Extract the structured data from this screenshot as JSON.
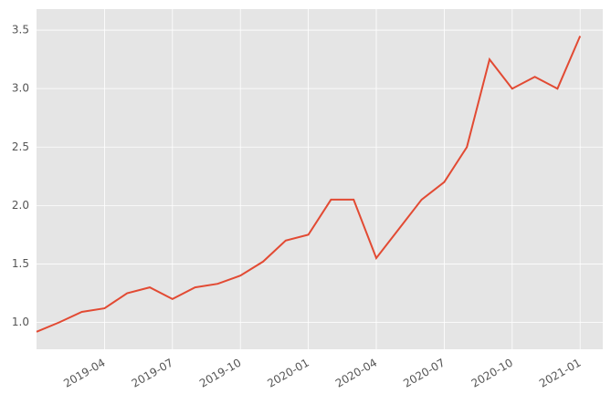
{
  "chart_data": {
    "type": "line",
    "x": [
      "2019-01",
      "2019-02",
      "2019-03",
      "2019-04",
      "2019-05",
      "2019-06",
      "2019-07",
      "2019-08",
      "2019-09",
      "2019-10",
      "2019-11",
      "2019-12",
      "2020-01",
      "2020-02",
      "2020-03",
      "2020-04",
      "2020-05",
      "2020-06",
      "2020-07",
      "2020-08",
      "2020-09",
      "2020-10",
      "2020-11",
      "2020-12",
      "2021-01"
    ],
    "series": [
      {
        "color": "#e24a33",
        "values": [
          0.92,
          1.0,
          1.09,
          1.12,
          1.25,
          1.3,
          1.2,
          1.3,
          1.33,
          1.4,
          1.52,
          1.7,
          1.75,
          2.05,
          2.05,
          1.55,
          1.8,
          2.05,
          2.2,
          2.5,
          3.25,
          3.0,
          3.1,
          3.0,
          3.45
        ]
      }
    ],
    "xlim": [
      "2019-01",
      "2021-02"
    ],
    "xticks": [
      "2019-04",
      "2019-07",
      "2019-10",
      "2020-01",
      "2020-04",
      "2020-07",
      "2020-10",
      "2021-01"
    ],
    "ylim": [
      0.77,
      3.68
    ],
    "yticks": [
      {
        "value": 1,
        "label": "1.0"
      },
      1.5,
      {
        "value": 2,
        "label": "2.0"
      },
      2.5,
      {
        "value": 3,
        "label": "3.0"
      },
      3.5
    ],
    "grid": true
  }
}
